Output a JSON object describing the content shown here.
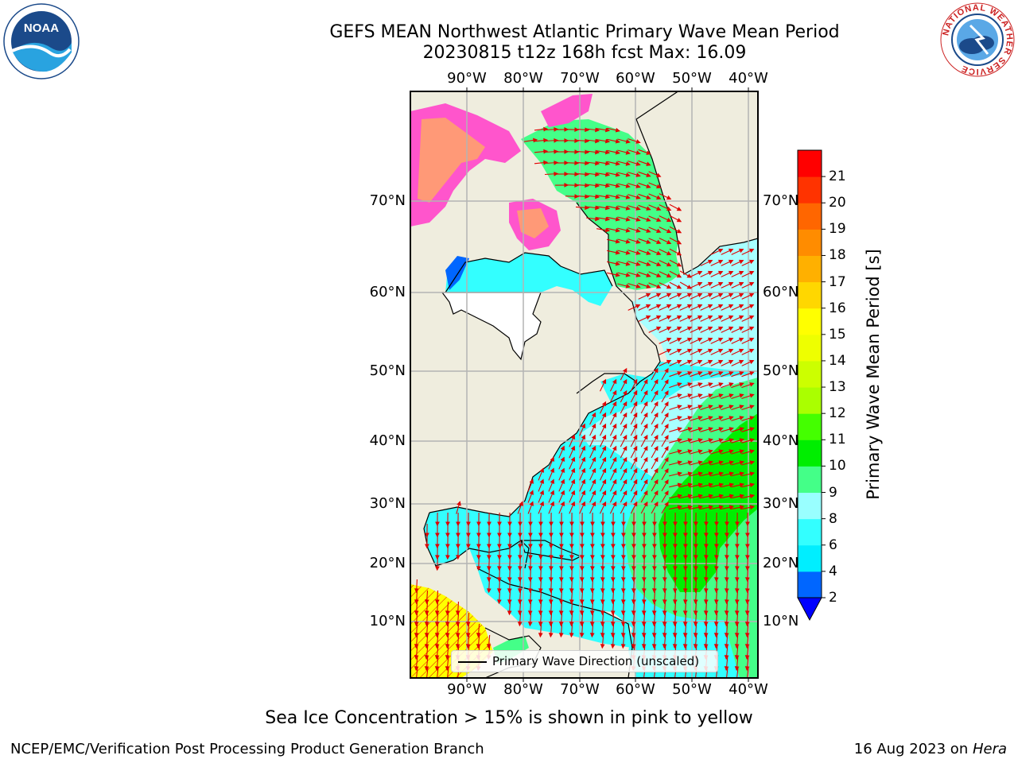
{
  "title": {
    "line1": "GEFS MEAN Northwest Atlantic Primary Wave Mean Period",
    "line2": "20230815 t12z 168h fcst   Max: 16.09"
  },
  "map": {
    "region": "Northwest Atlantic",
    "lon_ticks": [
      "90°W",
      "80°W",
      "70°W",
      "60°W",
      "50°W",
      "40°W"
    ],
    "lat_ticks": [
      "70°N",
      "60°N",
      "50°N",
      "40°N",
      "30°N",
      "20°N",
      "10°N"
    ],
    "colors": {
      "land": "#efedde",
      "grid": "#b4b4b4",
      "arrows": "#e00000",
      "coast": "#000000",
      "ice_low": "#ff55cc",
      "ice_high": "#ffff00"
    }
  },
  "legend": {
    "label": "Primary Wave Direction (unscaled)"
  },
  "colorbar": {
    "title": "Primary Wave Mean Period [s]",
    "ticks": [
      "2",
      "4",
      "6",
      "8",
      "9",
      "10",
      "11",
      "12",
      "13",
      "14",
      "15",
      "16",
      "17",
      "18",
      "19",
      "20",
      "21"
    ],
    "colors": [
      "#0066ff",
      "#00eeff",
      "#33ffff",
      "#99ffff",
      "#44ff88",
      "#00ee00",
      "#44ff00",
      "#aaff00",
      "#ccff00",
      "#eeff00",
      "#ffff00",
      "#ffd700",
      "#ffb000",
      "#ff8c00",
      "#ff6600",
      "#ff3300",
      "#ff0000"
    ],
    "extend_color": "#0000ff"
  },
  "note": "Sea Ice Concentration > 15% is shown in pink to yellow",
  "footer": {
    "left": "NCEP/EMC/Verification Post Processing Product Generation Branch",
    "date": "16 Aug 2023 on ",
    "host": "Hera"
  },
  "logos": {
    "noaa": "NOAA",
    "nws": "NATIONAL WEATHER SERVICE"
  }
}
